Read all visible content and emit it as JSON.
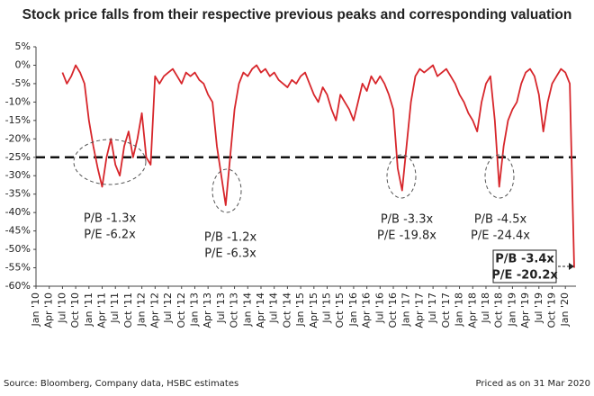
{
  "chart_data": {
    "type": "line",
    "title": "Stock price falls from their respective previous peaks and corresponding valuation",
    "categories": [
      "Jan '10",
      null,
      null,
      "Apr '10",
      null,
      null,
      "Jul '10",
      null,
      null,
      "Oct '10",
      null,
      null,
      "Jan '11",
      null,
      null,
      "Apr '11",
      null,
      null,
      "Jul '11",
      null,
      null,
      "Oct '11",
      null,
      null,
      "Jan '12",
      null,
      null,
      "Apr '12",
      null,
      null,
      "Jul '12",
      null,
      null,
      "Oct '12",
      null,
      null,
      "Jan '13",
      null,
      null,
      "Apr '13",
      null,
      null,
      "Jul '13",
      null,
      null,
      "Oct '13",
      null,
      null,
      "Jan '14",
      null,
      null,
      "Apr '14",
      null,
      null,
      "Jul '14",
      null,
      null,
      "Oct '14",
      null,
      null,
      "Jan '15",
      null,
      null,
      "Apr '15",
      null,
      null,
      "Jul '15",
      null,
      null,
      "Oct '15",
      null,
      null,
      "Jan '16",
      null,
      null,
      "Apr '16",
      null,
      null,
      "Jul '16",
      null,
      null,
      "Oct '16",
      null,
      null,
      "Jan '17",
      null,
      null,
      "Apr '17",
      null,
      null,
      "Jul '17",
      null,
      null,
      "Oct '17",
      null,
      null,
      "Jan '18",
      null,
      null,
      "Apr '18",
      null,
      null,
      "Jul '18",
      null,
      null,
      "Oct '18",
      null,
      null,
      "Jan '19",
      null,
      null,
      "Apr '19",
      null,
      null,
      "Jul '19",
      null,
      null,
      "Oct '19",
      null,
      null,
      "Jan '20",
      null,
      null
    ],
    "values": [
      null,
      null,
      null,
      null,
      null,
      null,
      -2,
      -5,
      -3,
      0,
      -2,
      -5,
      -15,
      -22,
      -28,
      -33,
      -25,
      -20,
      -27,
      -30,
      -22,
      -18,
      -25,
      -20,
      -13,
      -25,
      -27,
      -3,
      -5,
      -3,
      -2,
      -1,
      -3,
      -5,
      -2,
      -3,
      -2,
      -4,
      -5,
      -8,
      -10,
      -22,
      -30,
      -38,
      -25,
      -12,
      -5,
      -2,
      -3,
      -1,
      0,
      -2,
      -1,
      -3,
      -2,
      -4,
      -5,
      -6,
      -4,
      -5,
      -3,
      -2,
      -5,
      -8,
      -10,
      -6,
      -8,
      -12,
      -15,
      -8,
      -10,
      -12,
      -15,
      -10,
      -5,
      -7,
      -3,
      -5,
      -3,
      -5,
      -8,
      -12,
      -28,
      -34,
      -22,
      -10,
      -3,
      -1,
      -2,
      -1,
      0,
      -3,
      -2,
      -1,
      -3,
      -5,
      -8,
      -10,
      -13,
      -15,
      -18,
      -10,
      -5,
      -3,
      -15,
      -33,
      -22,
      -15,
      -12,
      -10,
      -5,
      -2,
      -1,
      -3,
      -8,
      -18,
      -10,
      -5,
      -3,
      -1,
      -2,
      -5,
      -55
    ],
    "color": "#d7262b",
    "ylim": [
      -60,
      5
    ],
    "yticks": [
      {
        "value": 5,
        "label": "5%"
      },
      {
        "value": 0,
        "label": "0%"
      },
      {
        "value": -5,
        "label": "-5%"
      },
      {
        "value": -10,
        "label": "-10%"
      },
      {
        "value": -15,
        "label": "-15%"
      },
      {
        "value": -20,
        "label": "-20%"
      },
      {
        "value": -25,
        "label": "-25%"
      },
      {
        "value": -30,
        "label": "-30%"
      },
      {
        "value": -35,
        "label": "-35%"
      },
      {
        "value": -40,
        "label": "-40%"
      },
      {
        "value": -45,
        "label": "-45%"
      },
      {
        "value": -50,
        "label": "-50%"
      },
      {
        "value": -55,
        "label": "-55%"
      },
      {
        "value": -60,
        "label": "-60%"
      }
    ],
    "reference_line": -25,
    "annotations": [
      {
        "pb": "P/B -1.3x",
        "pe": "P/E -6.2x"
      },
      {
        "pb": "P/B -1.2x",
        "pe": "P/E -6.3x"
      },
      {
        "pb": "P/B -3.3x",
        "pe": "P/E -19.8x"
      },
      {
        "pb": "P/B -4.5x",
        "pe": "P/E -24.4x"
      },
      {
        "pb": "P/B -3.4x",
        "pe": "P/E -20.2x"
      }
    ],
    "source": "Source: Bloomberg, Company data, HSBC estimates",
    "note": "Priced as on 31 Mar 2020"
  }
}
